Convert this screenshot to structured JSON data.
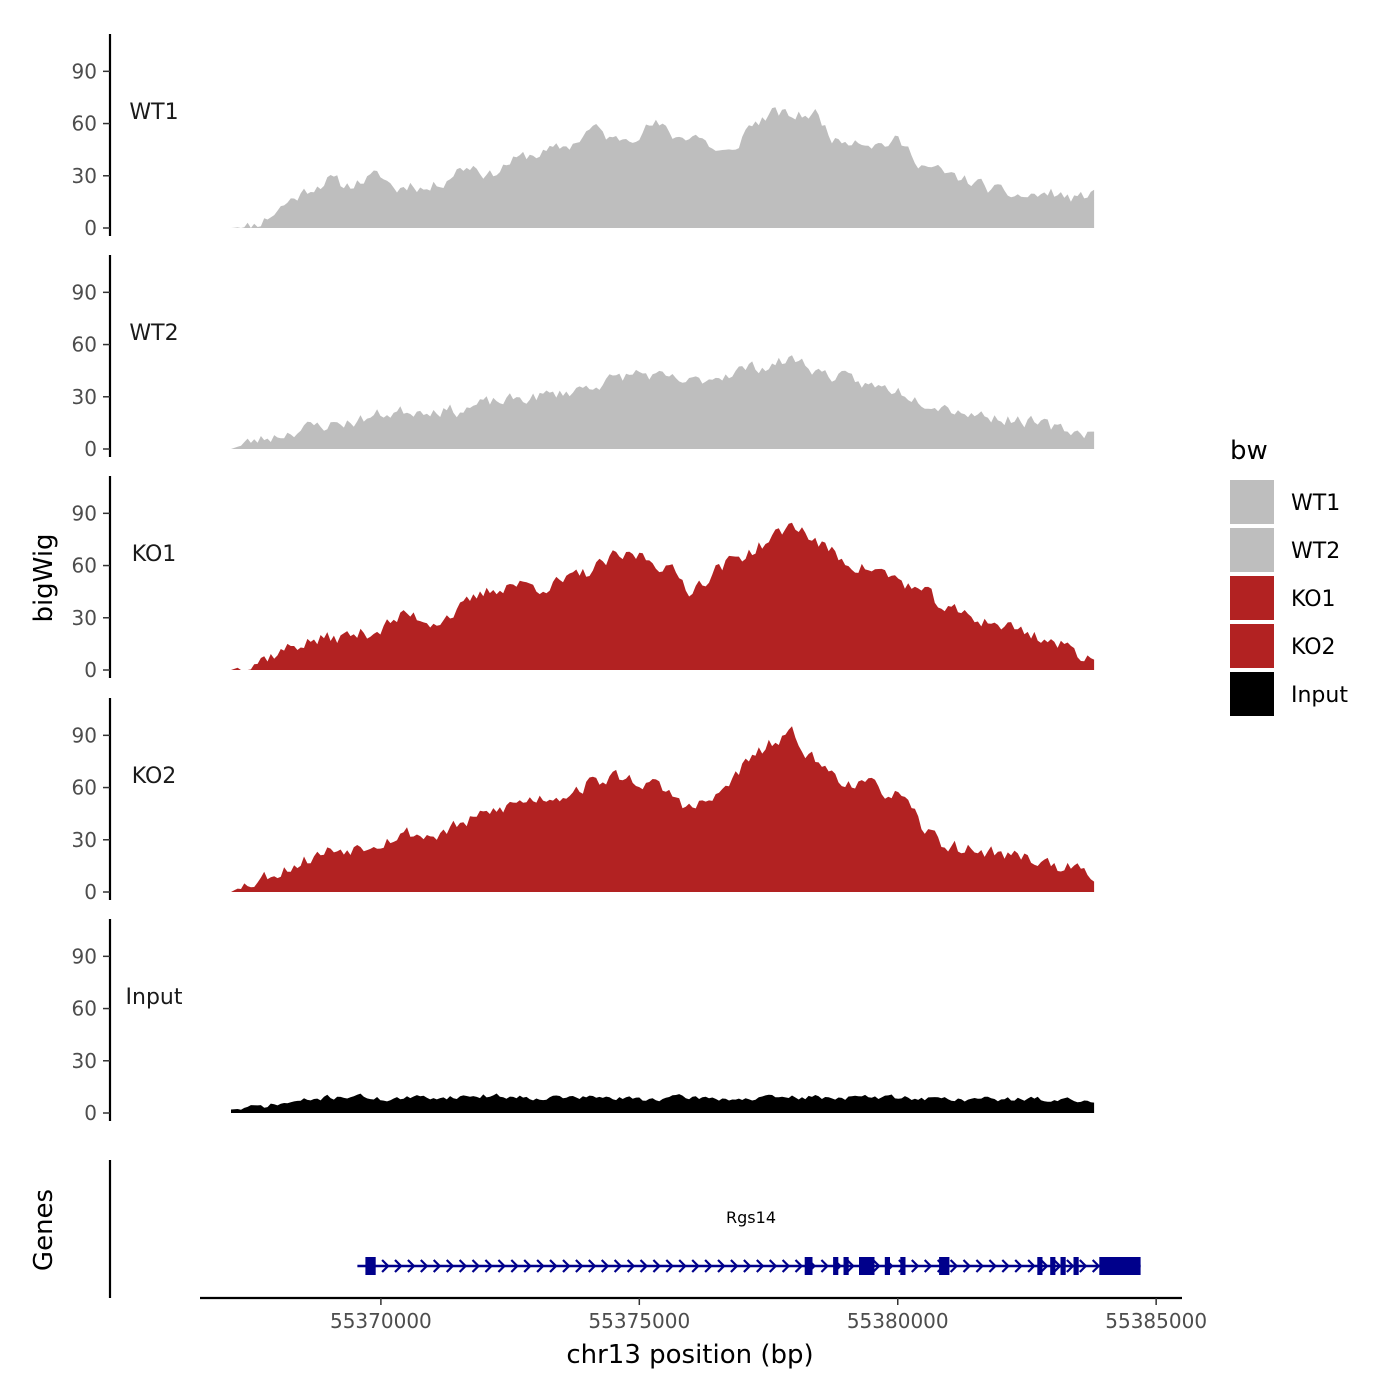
{
  "chart_data": {
    "type": "area",
    "ylabel": "bigWig",
    "xlabel": "chr13 position (bp)",
    "genes_label": "Genes",
    "x_range": [
      55366500,
      55385500
    ],
    "signal_x_range": [
      55367100,
      55383800
    ],
    "ylim": [
      0,
      108
    ],
    "y_ticks": [
      0,
      30,
      60,
      90
    ],
    "x_ticks": [
      55370000,
      55375000,
      55380000,
      55385000
    ],
    "x_tick_labels": [
      "55370000",
      "55375000",
      "55380000",
      "55385000"
    ],
    "legend": {
      "title": "bw",
      "position": "right",
      "entries": [
        {
          "label": "WT1",
          "color": "#bebebe"
        },
        {
          "label": "WT2",
          "color": "#bebebe"
        },
        {
          "label": "KO1",
          "color": "#b22222"
        },
        {
          "label": "KO2",
          "color": "#b22222"
        },
        {
          "label": "Input",
          "color": "#000000"
        }
      ]
    },
    "series": [
      {
        "name": "WT1",
        "color": "#bebebe",
        "anchors": [
          [
            55367100,
            0
          ],
          [
            55367500,
            1
          ],
          [
            55367800,
            6
          ],
          [
            55368200,
            15
          ],
          [
            55368700,
            24
          ],
          [
            55369000,
            28
          ],
          [
            55369300,
            24
          ],
          [
            55369700,
            28
          ],
          [
            55370000,
            30
          ],
          [
            55370300,
            22
          ],
          [
            55370600,
            26
          ],
          [
            55370900,
            22
          ],
          [
            55371200,
            27
          ],
          [
            55371500,
            34
          ],
          [
            55371800,
            36
          ],
          [
            55372100,
            30
          ],
          [
            55372500,
            38
          ],
          [
            55372900,
            42
          ],
          [
            55373300,
            44
          ],
          [
            55373700,
            48
          ],
          [
            55374100,
            58
          ],
          [
            55374500,
            50
          ],
          [
            55374900,
            54
          ],
          [
            55375300,
            60
          ],
          [
            55375700,
            52
          ],
          [
            55376100,
            54
          ],
          [
            55376500,
            44
          ],
          [
            55376800,
            42
          ],
          [
            55377100,
            58
          ],
          [
            55377600,
            66
          ],
          [
            55378000,
            64
          ],
          [
            55378400,
            66
          ],
          [
            55378800,
            50
          ],
          [
            55379200,
            52
          ],
          [
            55379600,
            48
          ],
          [
            55380000,
            50
          ],
          [
            55380500,
            36
          ],
          [
            55381000,
            30
          ],
          [
            55381500,
            26
          ],
          [
            55382000,
            20
          ],
          [
            55382500,
            18
          ],
          [
            55383000,
            20
          ],
          [
            55383500,
            16
          ],
          [
            55383800,
            22
          ]
        ],
        "noise": 6,
        "seed": 11
      },
      {
        "name": "WT2",
        "color": "#bebebe",
        "anchors": [
          [
            55367100,
            0
          ],
          [
            55367500,
            4
          ],
          [
            55368000,
            8
          ],
          [
            55368500,
            12
          ],
          [
            55369000,
            14
          ],
          [
            55369500,
            16
          ],
          [
            55370000,
            20
          ],
          [
            55370500,
            22
          ],
          [
            55371000,
            23
          ],
          [
            55371500,
            22
          ],
          [
            55372000,
            26
          ],
          [
            55372500,
            28
          ],
          [
            55373000,
            30
          ],
          [
            55373500,
            32
          ],
          [
            55374000,
            36
          ],
          [
            55374500,
            40
          ],
          [
            55375000,
            44
          ],
          [
            55375500,
            40
          ],
          [
            55376000,
            38
          ],
          [
            55376500,
            42
          ],
          [
            55377000,
            46
          ],
          [
            55377500,
            48
          ],
          [
            55378000,
            52
          ],
          [
            55378500,
            44
          ],
          [
            55379000,
            40
          ],
          [
            55379500,
            36
          ],
          [
            55380000,
            34
          ],
          [
            55380500,
            28
          ],
          [
            55381000,
            24
          ],
          [
            55381500,
            20
          ],
          [
            55382000,
            18
          ],
          [
            55382500,
            16
          ],
          [
            55383000,
            12
          ],
          [
            55383500,
            10
          ],
          [
            55383800,
            10
          ]
        ],
        "noise": 6,
        "seed": 23
      },
      {
        "name": "KO1",
        "color": "#b22222",
        "anchors": [
          [
            55367100,
            0
          ],
          [
            55367500,
            4
          ],
          [
            55368000,
            10
          ],
          [
            55368500,
            16
          ],
          [
            55369000,
            18
          ],
          [
            55369500,
            20
          ],
          [
            55370000,
            24
          ],
          [
            55370500,
            32
          ],
          [
            55371000,
            28
          ],
          [
            55371500,
            34
          ],
          [
            55372000,
            44
          ],
          [
            55372500,
            50
          ],
          [
            55373000,
            48
          ],
          [
            55373500,
            50
          ],
          [
            55374000,
            56
          ],
          [
            55374500,
            64
          ],
          [
            55375000,
            66
          ],
          [
            55375500,
            60
          ],
          [
            55376000,
            46
          ],
          [
            55376500,
            58
          ],
          [
            55377000,
            66
          ],
          [
            55377500,
            74
          ],
          [
            55378000,
            84
          ],
          [
            55378500,
            72
          ],
          [
            55379000,
            62
          ],
          [
            55379500,
            58
          ],
          [
            55380000,
            52
          ],
          [
            55380500,
            44
          ],
          [
            55381000,
            34
          ],
          [
            55381500,
            30
          ],
          [
            55382000,
            26
          ],
          [
            55382500,
            22
          ],
          [
            55383000,
            16
          ],
          [
            55383500,
            10
          ],
          [
            55383800,
            6
          ]
        ],
        "noise": 7,
        "seed": 37
      },
      {
        "name": "KO2",
        "color": "#b22222",
        "anchors": [
          [
            55367100,
            0
          ],
          [
            55367500,
            6
          ],
          [
            55368000,
            12
          ],
          [
            55368500,
            18
          ],
          [
            55369000,
            24
          ],
          [
            55369500,
            26
          ],
          [
            55370000,
            30
          ],
          [
            55370500,
            34
          ],
          [
            55371000,
            32
          ],
          [
            55371500,
            38
          ],
          [
            55372000,
            44
          ],
          [
            55372500,
            50
          ],
          [
            55373000,
            54
          ],
          [
            55373500,
            56
          ],
          [
            55374000,
            62
          ],
          [
            55374500,
            66
          ],
          [
            55375000,
            64
          ],
          [
            55375500,
            58
          ],
          [
            55376000,
            48
          ],
          [
            55376500,
            54
          ],
          [
            55377000,
            72
          ],
          [
            55377500,
            84
          ],
          [
            55378000,
            90
          ],
          [
            55378500,
            72
          ],
          [
            55379000,
            64
          ],
          [
            55379500,
            60
          ],
          [
            55380000,
            56
          ],
          [
            55380500,
            36
          ],
          [
            55381000,
            26
          ],
          [
            55381500,
            24
          ],
          [
            55382000,
            22
          ],
          [
            55382500,
            20
          ],
          [
            55383000,
            16
          ],
          [
            55383500,
            12
          ],
          [
            55383800,
            6
          ]
        ],
        "noise": 7,
        "seed": 53
      },
      {
        "name": "Input",
        "color": "#000000",
        "anchors": [
          [
            55367100,
            2
          ],
          [
            55367500,
            3
          ],
          [
            55368000,
            5
          ],
          [
            55368500,
            7
          ],
          [
            55369000,
            9
          ],
          [
            55369500,
            10
          ],
          [
            55370000,
            8
          ],
          [
            55371000,
            9
          ],
          [
            55372000,
            10
          ],
          [
            55373000,
            9
          ],
          [
            55374000,
            9
          ],
          [
            55375000,
            8
          ],
          [
            55376000,
            9
          ],
          [
            55377000,
            8
          ],
          [
            55378000,
            9
          ],
          [
            55379000,
            9
          ],
          [
            55380000,
            9
          ],
          [
            55381000,
            8
          ],
          [
            55382000,
            8
          ],
          [
            55383000,
            8
          ],
          [
            55383800,
            6
          ]
        ],
        "noise": 2.5,
        "seed": 71
      }
    ],
    "gene": {
      "name": "Rgs14",
      "strand": "+",
      "color": "#00008b",
      "start": 55369700,
      "end": 55384700,
      "exons": [
        [
          55369700,
          55369900
        ],
        [
          55378200,
          55378350
        ],
        [
          55378750,
          55378850
        ],
        [
          55378950,
          55379050
        ],
        [
          55379250,
          55379550
        ],
        [
          55379750,
          55379850
        ],
        [
          55380050,
          55380150
        ],
        [
          55380800,
          55381000
        ],
        [
          55382700,
          55382800
        ],
        [
          55382950,
          55383050
        ],
        [
          55383150,
          55383250
        ],
        [
          55383400,
          55383500
        ],
        [
          55383900,
          55384700
        ]
      ]
    }
  }
}
